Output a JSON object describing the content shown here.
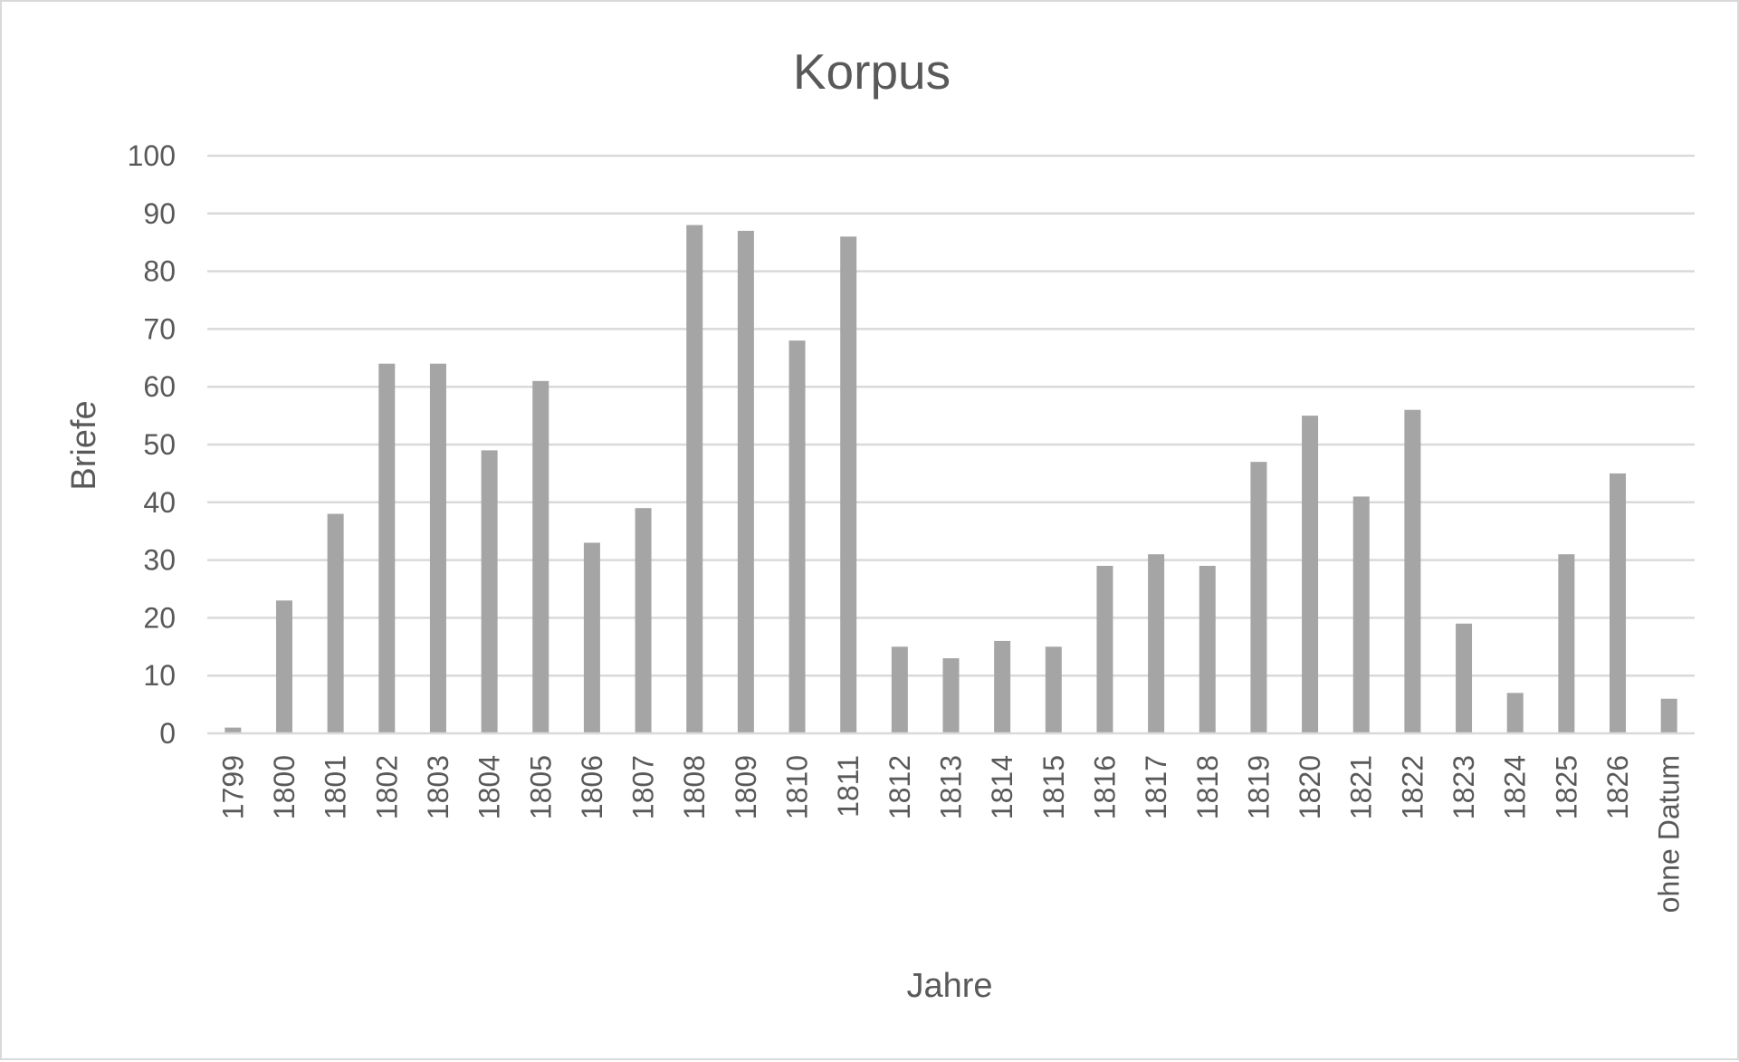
{
  "chart_data": {
    "type": "bar",
    "title": "Korpus",
    "xlabel": "Jahre",
    "ylabel": "Briefe",
    "ylim": [
      0,
      100
    ],
    "yticks": [
      0,
      10,
      20,
      30,
      40,
      50,
      60,
      70,
      80,
      90,
      100
    ],
    "grid": true,
    "legend": "none",
    "bar_color": "#a5a5a5",
    "categories": [
      "1799",
      "1800",
      "1801",
      "1802",
      "1803",
      "1804",
      "1805",
      "1806",
      "1807",
      "1808",
      "1809",
      "1810",
      "1811",
      "1812",
      "1813",
      "1814",
      "1815",
      "1816",
      "1817",
      "1818",
      "1819",
      "1820",
      "1821",
      "1822",
      "1823",
      "1824",
      "1825",
      "1826",
      "ohne Datum"
    ],
    "values": [
      1,
      23,
      38,
      64,
      64,
      49,
      61,
      33,
      39,
      88,
      87,
      68,
      86,
      15,
      13,
      16,
      15,
      29,
      31,
      29,
      47,
      55,
      41,
      56,
      19,
      7,
      31,
      45,
      6
    ]
  }
}
